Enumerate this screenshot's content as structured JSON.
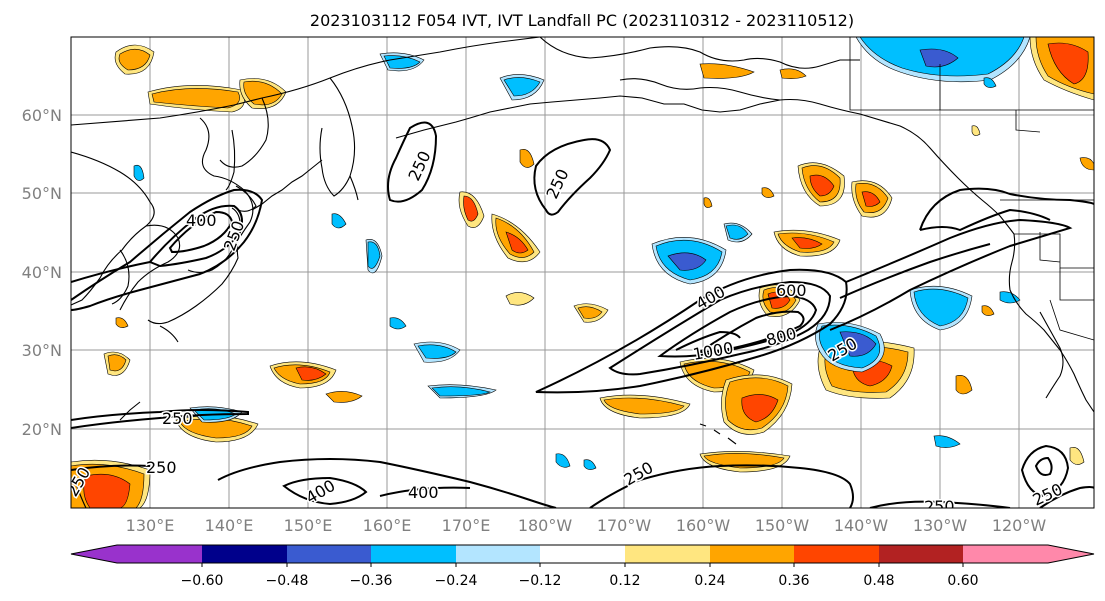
{
  "title": "2023103112 F054 IVT, IVT Landfall PC (2023110312 - 2023110512)",
  "lat_labels": [
    "60°N",
    "50°N",
    "40°N",
    "30°N",
    "20°N"
  ],
  "lon_labels": [
    "130°E",
    "140°E",
    "150°E",
    "160°E",
    "170°E",
    "180°W",
    "170°W",
    "160°W",
    "150°W",
    "140°W",
    "130°W",
    "120°W"
  ],
  "contour_labels": [
    "250",
    "250",
    "250",
    "400",
    "250",
    "250",
    "250",
    "400",
    "400",
    "250",
    "400",
    "600",
    "800",
    "1000",
    "250",
    "250",
    "250"
  ],
  "colorbar": {
    "ticks": [
      "−0.60",
      "−0.48",
      "−0.36",
      "−0.24",
      "−0.12",
      "0.12",
      "0.24",
      "0.36",
      "0.48",
      "0.60"
    ],
    "colors": [
      "#9932cc",
      "#00008b",
      "#3a5bd0",
      "#00bfff",
      "#b3e5ff",
      "#ffffff",
      "#ffe680",
      "#ffa500",
      "#ff4500",
      "#b22222",
      "#ff88aa"
    ]
  },
  "colors": {
    "coast": "#000000",
    "grid": "#999999",
    "label_gray": "#808080",
    "contour": "#000000"
  }
}
